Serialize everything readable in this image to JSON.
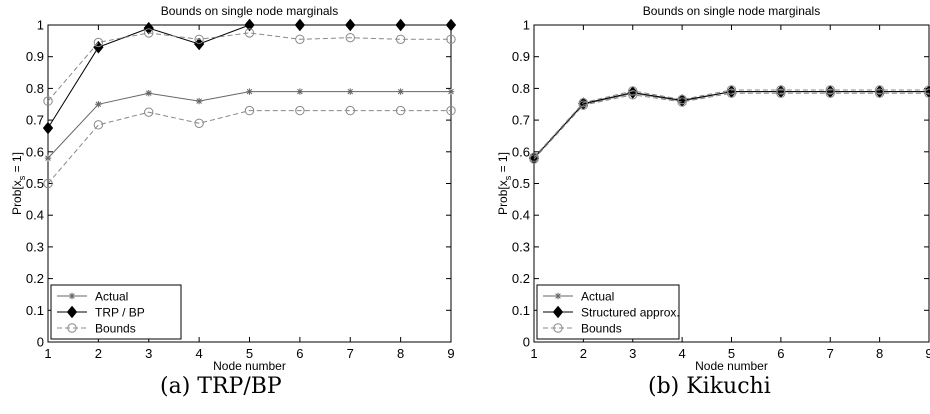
{
  "charts": [
    {
      "type": "line",
      "title": "Bounds on single node marginals",
      "xlabel": "Node number",
      "ylabel_main": "Prob[x",
      "ylabel_sub": "s",
      "ylabel_tail": " = 1]",
      "caption": "(a) TRP/BP",
      "xlim": [
        1,
        9
      ],
      "ylim": [
        0,
        1
      ],
      "x": [
        1,
        2,
        3,
        4,
        5,
        6,
        7,
        8,
        9
      ],
      "xticks": [
        "1",
        "2",
        "3",
        "4",
        "5",
        "6",
        "7",
        "8",
        "9"
      ],
      "yticks": [
        "0",
        "0.1",
        "0.2",
        "0.3",
        "0.4",
        "0.5",
        "0.6",
        "0.7",
        "0.8",
        "0.9",
        "1"
      ],
      "legend_position": "bottom-left",
      "series": [
        {
          "name": "Actual",
          "marker": "star",
          "style": "solid",
          "color": "#666666",
          "values": [
            0.58,
            0.75,
            0.785,
            0.76,
            0.79,
            0.79,
            0.79,
            0.79,
            0.79
          ]
        },
        {
          "name": "TRP / BP",
          "marker": "diamond",
          "style": "solid",
          "color": "#000000",
          "values": [
            0.675,
            0.93,
            0.99,
            0.94,
            1.0,
            1.0,
            1.0,
            1.0,
            1.0
          ]
        },
        {
          "name": "Bounds",
          "marker": "circle",
          "style": "dashed",
          "color": "#888888",
          "values": [
            0.5,
            0.685,
            0.725,
            0.69,
            0.73,
            0.73,
            0.73,
            0.73,
            0.73
          ]
        },
        {
          "name": "",
          "marker": "circle",
          "style": "dashed",
          "color": "#888888",
          "values": [
            0.76,
            0.945,
            0.975,
            0.955,
            0.975,
            0.955,
            0.96,
            0.955,
            0.955
          ]
        }
      ]
    },
    {
      "type": "line",
      "title": "Bounds on single node marginals",
      "xlabel": "Node number",
      "ylabel_main": "Prob[x",
      "ylabel_sub": "s",
      "ylabel_tail": " = 1]",
      "caption": "(b) Kikuchi",
      "xlim": [
        1,
        9
      ],
      "ylim": [
        0,
        1
      ],
      "x": [
        1,
        2,
        3,
        4,
        5,
        6,
        7,
        8,
        9
      ],
      "xticks": [
        "1",
        "2",
        "3",
        "4",
        "5",
        "6",
        "7",
        "8",
        "9"
      ],
      "yticks": [
        "0",
        "0.1",
        "0.2",
        "0.3",
        "0.4",
        "0.5",
        "0.6",
        "0.7",
        "0.8",
        "0.9",
        "1"
      ],
      "legend_position": "bottom-left",
      "series": [
        {
          "name": "Actual",
          "marker": "star",
          "style": "solid",
          "color": "#666666",
          "values": [
            0.58,
            0.75,
            0.785,
            0.76,
            0.79,
            0.79,
            0.79,
            0.79,
            0.79
          ]
        },
        {
          "name": "Structured approx.",
          "marker": "diamond",
          "style": "solid",
          "color": "#000000",
          "values": [
            0.58,
            0.752,
            0.787,
            0.762,
            0.79,
            0.79,
            0.79,
            0.79,
            0.79
          ]
        },
        {
          "name": "Bounds",
          "marker": "circle",
          "style": "dashed",
          "color": "#888888",
          "values": [
            0.577,
            0.747,
            0.78,
            0.757,
            0.785,
            0.785,
            0.785,
            0.785,
            0.785
          ]
        },
        {
          "name": "",
          "marker": "circle",
          "style": "dashed",
          "color": "#888888",
          "values": [
            0.583,
            0.755,
            0.792,
            0.765,
            0.795,
            0.795,
            0.795,
            0.795,
            0.795
          ]
        }
      ]
    }
  ]
}
